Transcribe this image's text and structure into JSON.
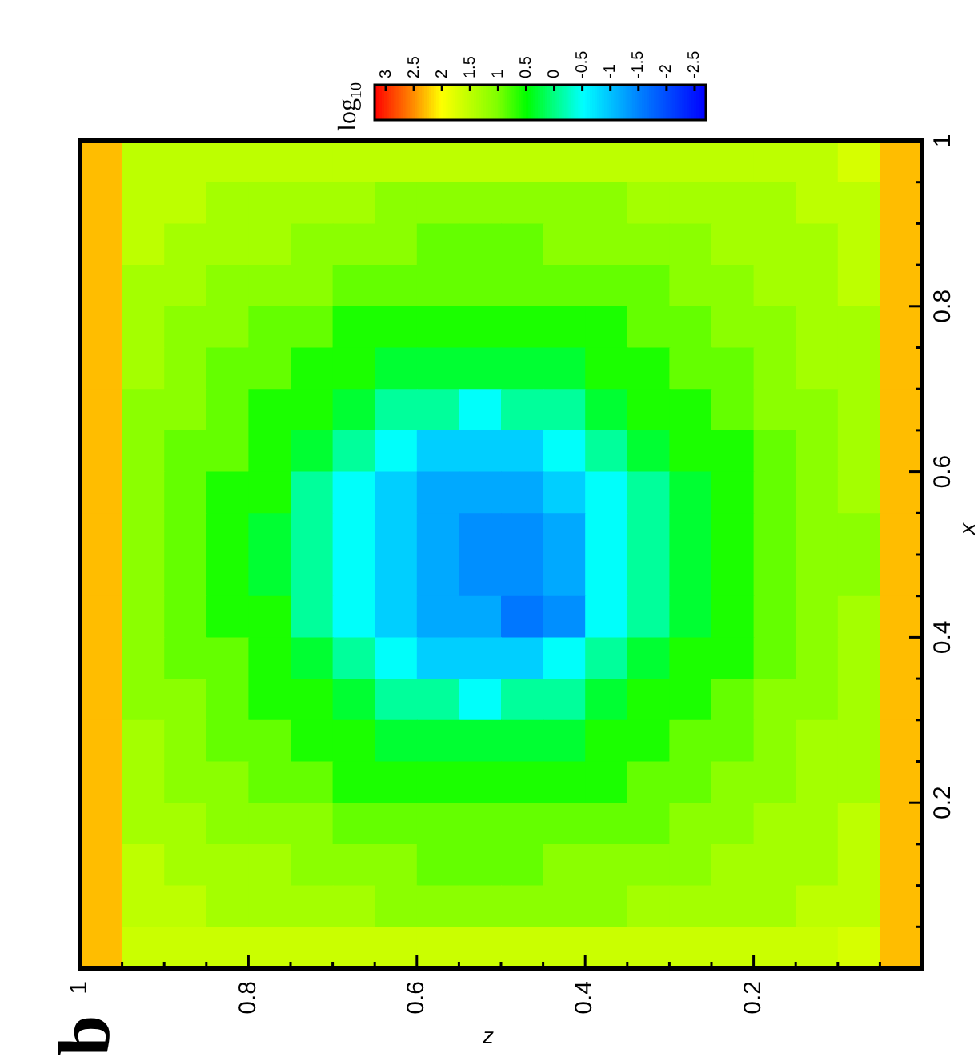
{
  "chart_data": {
    "type": "heatmap",
    "title": "b",
    "xlabel": "z",
    "ylabel": "x",
    "clabel": "log$_{10}$",
    "x": [
      0.975,
      0.925,
      0.875,
      0.825,
      0.775,
      0.725,
      0.675,
      0.625,
      0.575,
      0.525,
      0.475,
      0.425,
      0.375,
      0.325,
      0.275,
      0.225,
      0.175,
      0.125,
      0.075,
      0.025
    ],
    "y": [
      0.975,
      0.925,
      0.875,
      0.825,
      0.775,
      0.725,
      0.675,
      0.625,
      0.575,
      0.525,
      0.475,
      0.425,
      0.375,
      0.325,
      0.275,
      0.225,
      0.175,
      0.125,
      0.075,
      0.025
    ],
    "xlim": [
      1,
      0
    ],
    "ylim": [
      0,
      1
    ],
    "xticks": [
      1,
      {
        "value": 0.95,
        "label": null
      },
      {
        "value": 0.9,
        "label": null
      },
      {
        "value": 0.85,
        "label": null
      },
      0.8,
      {
        "value": 0.75,
        "label": null
      },
      {
        "value": 0.7,
        "label": null
      },
      {
        "value": 0.65,
        "label": null
      },
      0.6,
      {
        "value": 0.55,
        "label": null
      },
      {
        "value": 0.5,
        "label": null
      },
      {
        "value": 0.45,
        "label": null
      },
      0.4,
      {
        "value": 0.35,
        "label": null
      },
      {
        "value": 0.3,
        "label": null
      },
      {
        "value": 0.25,
        "label": null
      },
      0.2,
      {
        "value": 0.15,
        "label": null
      },
      {
        "value": 0.1,
        "label": null
      },
      {
        "value": 0.05,
        "label": null
      }
    ],
    "yticks": [
      {
        "value": 0.05,
        "label": null
      },
      {
        "value": 0.1,
        "label": null
      },
      {
        "value": 0.15,
        "label": null
      },
      0.2,
      {
        "value": 0.25,
        "label": null
      },
      {
        "value": 0.3,
        "label": null
      },
      {
        "value": 0.35,
        "label": null
      },
      0.4,
      {
        "value": 0.45,
        "label": null
      },
      {
        "value": 0.5,
        "label": null
      },
      {
        "value": 0.55,
        "label": null
      },
      0.6,
      {
        "value": 0.65,
        "label": null
      },
      {
        "value": 0.7,
        "label": null
      },
      {
        "value": 0.75,
        "label": null
      },
      0.8,
      {
        "value": 0.85,
        "label": null
      },
      {
        "value": 0.9,
        "label": null
      },
      {
        "value": 0.95,
        "label": null
      },
      1
    ],
    "clim": [
      -2.7,
      3.2
    ],
    "cticks": [
      3,
      2.5,
      2,
      1.5,
      1,
      0.5,
      0,
      -0.5,
      -1,
      -1.5,
      -2,
      -2.5
    ],
    "cells": [
      [
        2.3,
        1.5,
        1.5,
        1.5,
        1.5,
        1.5,
        1.5,
        1.5,
        1.5,
        1.5,
        1.5,
        1.5,
        1.5,
        1.5,
        1.5,
        1.5,
        1.5,
        1.5,
        1.7,
        2.3
      ],
      [
        2.3,
        1.5,
        1.5,
        1.3,
        1.3,
        1.3,
        1.3,
        1.1,
        1.1,
        1.1,
        1.1,
        1.1,
        1.1,
        1.3,
        1.3,
        1.3,
        1.3,
        1.5,
        1.5,
        2.3
      ],
      [
        2.3,
        1.5,
        1.3,
        1.3,
        1.3,
        1.1,
        1.1,
        1.1,
        0.9,
        0.9,
        0.9,
        1.1,
        1.1,
        1.1,
        1.1,
        1.3,
        1.3,
        1.3,
        1.5,
        2.3
      ],
      [
        2.3,
        1.3,
        1.3,
        1.1,
        1.1,
        1.1,
        0.9,
        0.9,
        0.9,
        0.9,
        0.9,
        0.9,
        0.9,
        0.9,
        1.1,
        1.1,
        1.3,
        1.3,
        1.5,
        2.3
      ],
      [
        2.3,
        1.3,
        1.1,
        1.1,
        0.9,
        0.9,
        0.6,
        0.6,
        0.6,
        0.6,
        0.6,
        0.6,
        0.6,
        0.9,
        0.9,
        1.1,
        1.1,
        1.3,
        1.3,
        2.3
      ],
      [
        2.3,
        1.3,
        1.1,
        0.9,
        0.9,
        0.6,
        0.6,
        0.3,
        0.3,
        0.3,
        0.3,
        0.3,
        0.6,
        0.6,
        0.9,
        0.9,
        1.1,
        1.3,
        1.3,
        2.3
      ],
      [
        2.3,
        1.1,
        1.1,
        0.9,
        0.6,
        0.6,
        0.3,
        -0.1,
        -0.1,
        -0.5,
        -0.1,
        -0.1,
        0.3,
        0.6,
        0.6,
        0.9,
        1.1,
        1.1,
        1.3,
        2.3
      ],
      [
        2.3,
        1.1,
        0.9,
        0.9,
        0.6,
        0.3,
        -0.1,
        -0.5,
        -0.9,
        -0.9,
        -0.9,
        -0.5,
        -0.1,
        0.3,
        0.6,
        0.6,
        0.9,
        1.1,
        1.3,
        2.3
      ],
      [
        2.3,
        1.1,
        0.9,
        0.6,
        0.6,
        -0.1,
        -0.5,
        -0.9,
        -1.2,
        -1.2,
        -1.2,
        -0.9,
        -0.5,
        -0.1,
        0.3,
        0.6,
        0.9,
        1.1,
        1.3,
        2.3
      ],
      [
        2.3,
        1.1,
        0.9,
        0.6,
        0.3,
        -0.1,
        -0.5,
        -0.9,
        -1.2,
        -1.4,
        -1.4,
        -1.2,
        -0.5,
        -0.1,
        0.3,
        0.6,
        0.9,
        1.1,
        1.1,
        2.3
      ],
      [
        2.3,
        1.1,
        0.9,
        0.6,
        0.3,
        -0.1,
        -0.5,
        -0.9,
        -1.2,
        -1.4,
        -1.4,
        -1.2,
        -0.5,
        -0.1,
        0.3,
        0.6,
        0.9,
        1.1,
        1.1,
        2.3
      ],
      [
        2.3,
        1.1,
        0.9,
        0.6,
        0.6,
        -0.1,
        -0.5,
        -0.9,
        -1.2,
        -1.2,
        -1.6,
        -1.4,
        -0.5,
        -0.1,
        0.3,
        0.6,
        0.9,
        1.1,
        1.3,
        2.3
      ],
      [
        2.3,
        1.1,
        0.9,
        0.9,
        0.6,
        0.3,
        -0.1,
        -0.5,
        -0.9,
        -0.9,
        -0.9,
        -0.5,
        -0.1,
        0.3,
        0.6,
        0.6,
        0.9,
        1.1,
        1.3,
        2.3
      ],
      [
        2.3,
        1.1,
        1.1,
        0.9,
        0.6,
        0.6,
        0.3,
        -0.1,
        -0.1,
        -0.5,
        -0.1,
        -0.1,
        0.3,
        0.6,
        0.6,
        0.9,
        1.1,
        1.1,
        1.3,
        2.3
      ],
      [
        2.3,
        1.3,
        1.1,
        0.9,
        0.9,
        0.6,
        0.6,
        0.3,
        0.3,
        0.3,
        0.3,
        0.3,
        0.6,
        0.6,
        0.9,
        0.9,
        1.1,
        1.3,
        1.3,
        2.3
      ],
      [
        2.3,
        1.3,
        1.1,
        1.1,
        0.9,
        0.9,
        0.6,
        0.6,
        0.6,
        0.6,
        0.6,
        0.6,
        0.6,
        0.9,
        0.9,
        1.1,
        1.1,
        1.3,
        1.3,
        2.3
      ],
      [
        2.3,
        1.3,
        1.3,
        1.1,
        1.1,
        1.1,
        0.9,
        0.9,
        0.9,
        0.9,
        0.9,
        0.9,
        0.9,
        0.9,
        1.1,
        1.1,
        1.3,
        1.3,
        1.5,
        2.3
      ],
      [
        2.3,
        1.5,
        1.3,
        1.3,
        1.3,
        1.1,
        1.1,
        1.1,
        0.9,
        0.9,
        0.9,
        1.1,
        1.1,
        1.1,
        1.1,
        1.3,
        1.3,
        1.3,
        1.5,
        2.3
      ],
      [
        2.3,
        1.5,
        1.5,
        1.3,
        1.3,
        1.3,
        1.3,
        1.1,
        1.1,
        1.1,
        1.1,
        1.1,
        1.1,
        1.3,
        1.3,
        1.3,
        1.3,
        1.5,
        1.5,
        2.3
      ],
      [
        2.3,
        1.6,
        1.6,
        1.6,
        1.6,
        1.6,
        1.6,
        1.6,
        1.6,
        1.6,
        1.6,
        1.6,
        1.6,
        1.6,
        1.6,
        1.6,
        1.6,
        1.6,
        1.7,
        2.3
      ]
    ]
  }
}
